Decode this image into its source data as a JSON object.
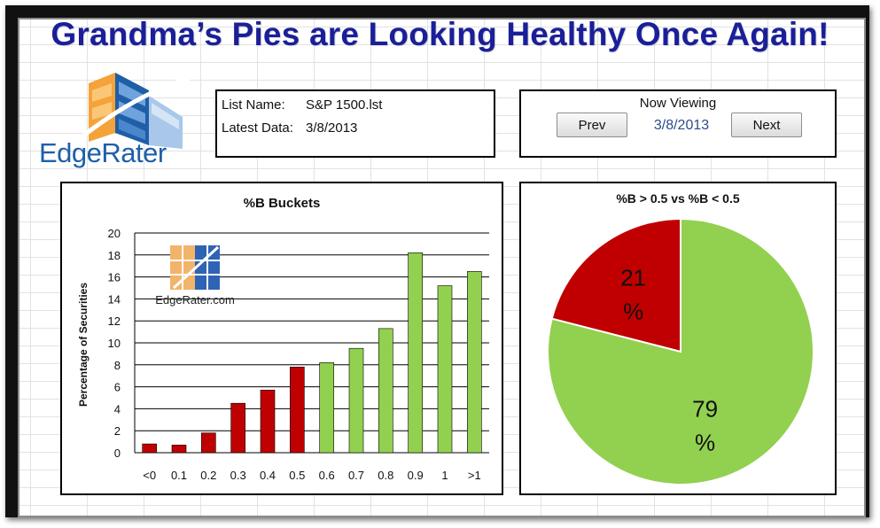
{
  "headline": "Grandma’s Pies are Looking Healthy Once Again!",
  "logo": {
    "text": "EdgeRater"
  },
  "list_info": {
    "list_name_label": "List Name:",
    "list_name_value": "S&P 1500.lst",
    "latest_data_label": "Latest Data:",
    "latest_data_value": "3/8/2013"
  },
  "viewer": {
    "title": "Now Viewing",
    "prev_label": "Prev",
    "date": "3/8/2013",
    "next_label": "Next"
  },
  "colors": {
    "red": "#c00000",
    "green": "#92d050",
    "headline": "#1a1f99"
  },
  "chart_data": [
    {
      "type": "bar",
      "title": "%B Buckets",
      "ylabel": "Percentage of Securities",
      "xlabel": "",
      "ylim": [
        0,
        20
      ],
      "yticks": [
        0,
        2,
        4,
        6,
        8,
        10,
        12,
        14,
        16,
        18,
        20
      ],
      "grid": true,
      "watermark": "EdgeRater.com",
      "categories": [
        "<0",
        "0.1",
        "0.2",
        "0.3",
        "0.4",
        "0.5",
        "0.6",
        "0.7",
        "0.8",
        "0.9",
        "1",
        ">1"
      ],
      "values": [
        0.8,
        0.7,
        1.8,
        4.5,
        5.7,
        7.8,
        8.2,
        9.5,
        11.3,
        18.2,
        15.2,
        16.5
      ],
      "bar_colors": [
        "#c00000",
        "#c00000",
        "#c00000",
        "#c00000",
        "#c00000",
        "#c00000",
        "#92d050",
        "#92d050",
        "#92d050",
        "#92d050",
        "#92d050",
        "#92d050"
      ]
    },
    {
      "type": "pie",
      "title": "%B > 0.5 vs %B < 0.5",
      "slices": [
        {
          "label_top": "21",
          "label_bottom": "%",
          "value": 21,
          "color": "#c00000"
        },
        {
          "label_top": "79",
          "label_bottom": "%",
          "value": 79,
          "color": "#92d050"
        }
      ]
    }
  ]
}
